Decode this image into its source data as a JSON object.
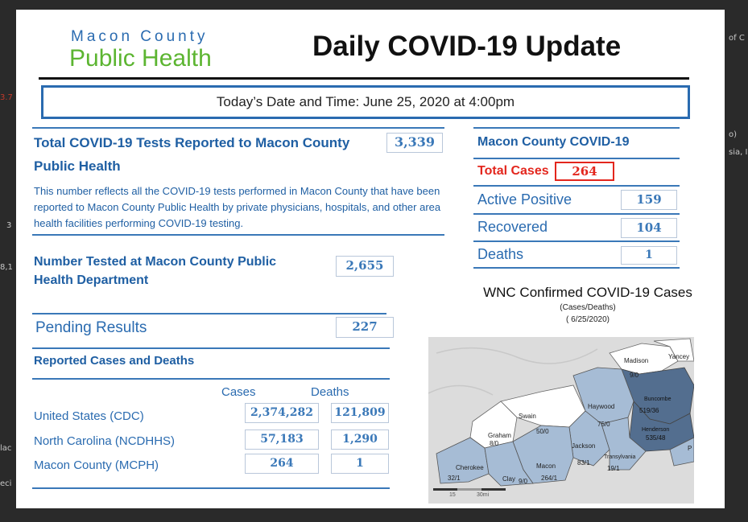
{
  "background": {
    "left_fragments": [
      "3.7",
      "3",
      "8,1",
      "lac",
      "eci"
    ],
    "right_fragments": [
      "of C",
      "o)",
      "sia, I"
    ]
  },
  "header": {
    "org_line1": "Macon County",
    "org_line2": "Public Health",
    "title": "Daily COVID-19 Update",
    "date_line": "Today’s Date and Time:  June 25, 2020 at 4:00pm"
  },
  "total_tests": {
    "label": "Total COVID-19 Tests Reported to Macon County Public Health",
    "value": "3,339",
    "description": "This number reflects all the COVID-19 tests performed in Macon County that have been reported to Macon County Public Health by private physicians, hospitals, and other area health facilities performing COVID-19 testing."
  },
  "tested_at_mcph": {
    "label": "Number Tested at Macon County Public Health Department",
    "value": "2,655"
  },
  "pending": {
    "label": "Pending Results",
    "value": "227"
  },
  "reported": {
    "heading": "Reported Cases and Deaths",
    "col_cases": "Cases",
    "col_deaths": "Deaths",
    "rows": [
      {
        "label": "United States (CDC)",
        "cases": "2,374,282",
        "deaths": "121,809"
      },
      {
        "label": "North Carolina (NCDHHS)",
        "cases": "57,183",
        "deaths": "1,290"
      },
      {
        "label": "Macon County (MCPH)",
        "cases": "264",
        "deaths": "1"
      }
    ]
  },
  "macon_covid": {
    "heading": "Macon County COVID-19",
    "total_label": "Total Cases",
    "total_value": "264",
    "active_label": "Active Positive",
    "active_value": "159",
    "recovered_label": "Recovered",
    "recovered_value": "104",
    "deaths_label": "Deaths",
    "deaths_value": "1"
  },
  "wnc": {
    "title": "WNC Confirmed COVID-19 Cases",
    "subtitle": "(Cases/Deaths)",
    "date": "( 6/25/2020)",
    "counties": [
      {
        "name": "Madison",
        "value": "9/0"
      },
      {
        "name": "Yancey",
        "value": ""
      },
      {
        "name": "Buncombe",
        "value": "519/36"
      },
      {
        "name": "Haywood",
        "value": "75/0"
      },
      {
        "name": "Swain",
        "value": "50/0"
      },
      {
        "name": "Graham",
        "value": "8/0"
      },
      {
        "name": "Henderson",
        "value": "535/48"
      },
      {
        "name": "Jackson",
        "value": "83/1"
      },
      {
        "name": "Transylvania",
        "value": "19/1"
      },
      {
        "name": "Cherokee",
        "value": "32/1"
      },
      {
        "name": "Macon",
        "value": "264/1"
      },
      {
        "name": "Clay",
        "value": "9/0"
      },
      {
        "name": "P",
        "value": ""
      }
    ],
    "scale": [
      "15",
      "30mi"
    ]
  }
}
